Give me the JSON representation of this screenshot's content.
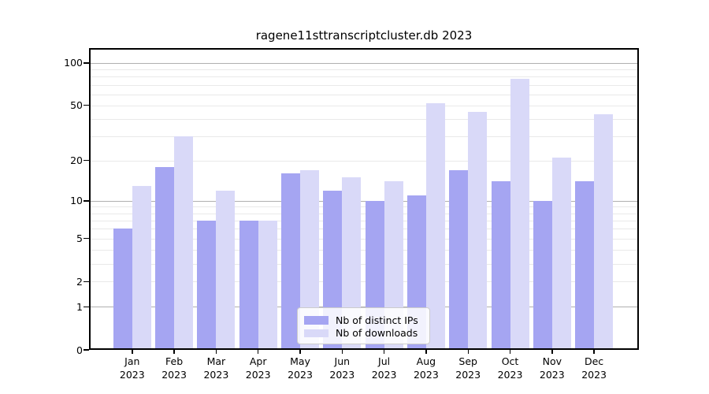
{
  "chart_data": {
    "type": "bar",
    "title": "ragene11sttranscriptcluster.db 2023",
    "categories": [
      "Jan",
      "Feb",
      "Mar",
      "Apr",
      "May",
      "Jun",
      "Jul",
      "Aug",
      "Sep",
      "Oct",
      "Nov",
      "Dec"
    ],
    "year": "2023",
    "series": [
      {
        "name": "Nb of distinct IPs",
        "color": "#a5a5f2",
        "values": [
          6,
          18,
          7,
          7,
          16,
          12,
          10,
          11,
          17,
          14,
          10,
          14
        ]
      },
      {
        "name": "Nb of downloads",
        "color": "#d9d9f8",
        "values": [
          13,
          30,
          12,
          7,
          17,
          15,
          14,
          52,
          45,
          77,
          21,
          43
        ]
      }
    ],
    "yscale": "log1p",
    "yticks": [
      0,
      1,
      2,
      5,
      10,
      20,
      50,
      100
    ],
    "ylim": [
      0,
      127
    ],
    "xlabel": "",
    "ylabel": "",
    "grid": true,
    "legend_position": "lower center"
  },
  "colors": {
    "major_grid": "#b0b0b0",
    "minor_grid": "#e9e9e9",
    "axis": "#000000",
    "legend_border": "#cccccc"
  }
}
